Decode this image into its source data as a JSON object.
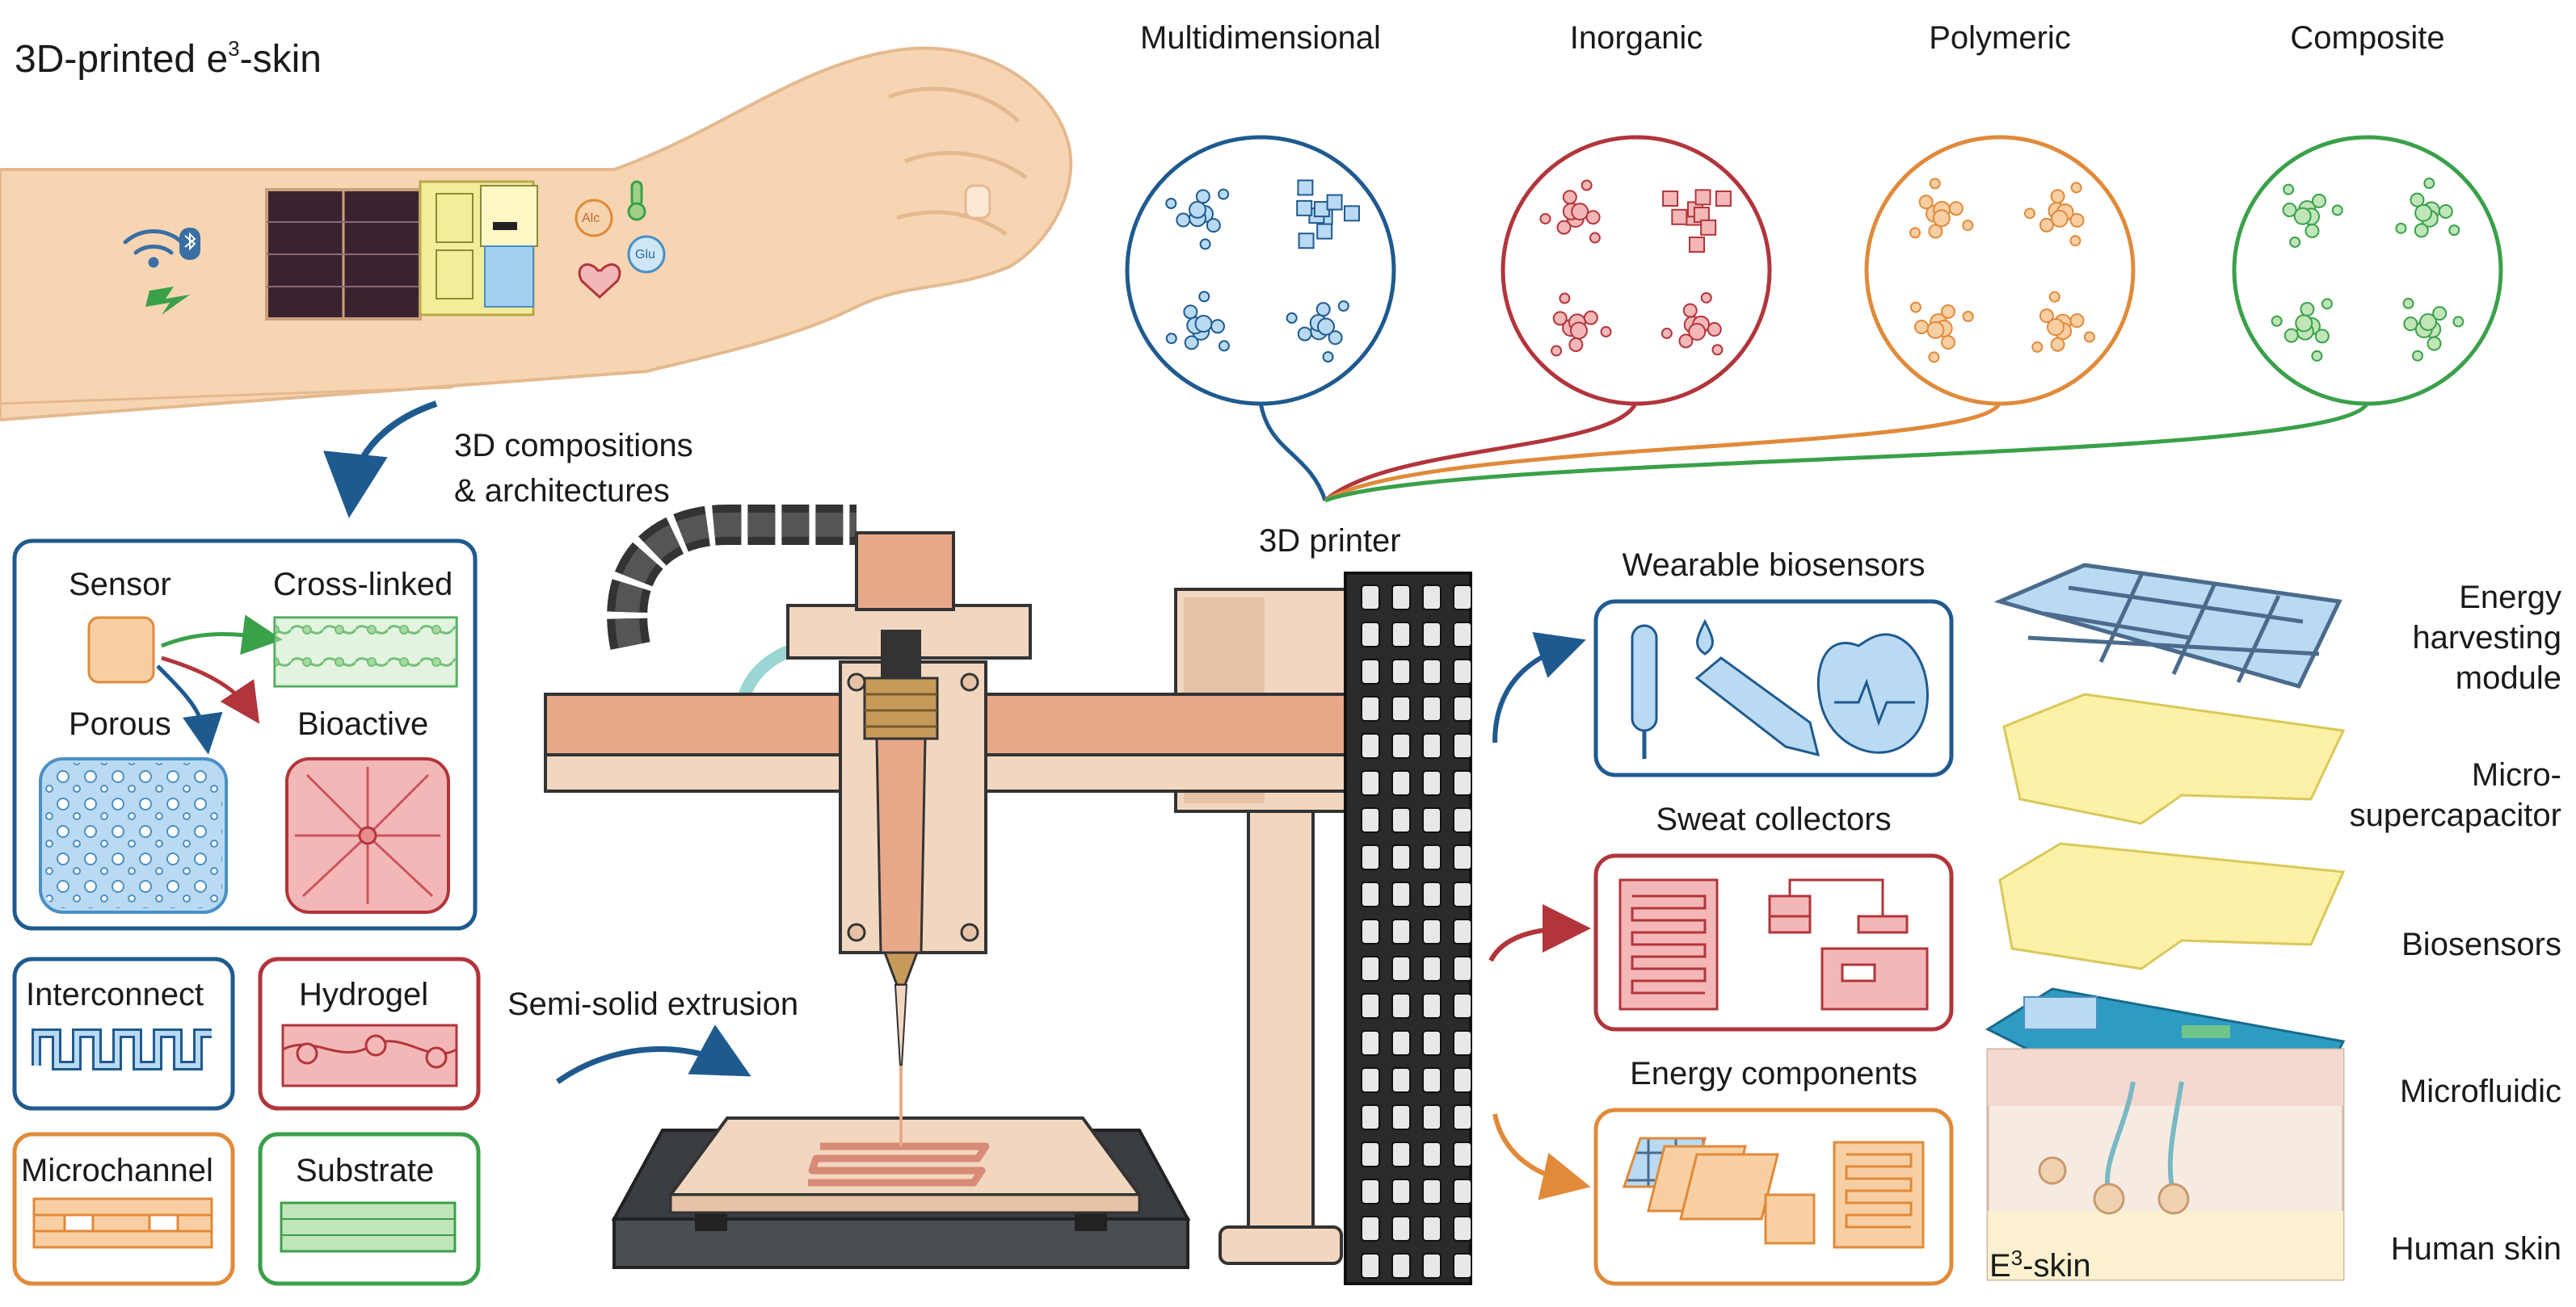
{
  "figure": {
    "main_title": "3D-printed e",
    "main_title_sup": "3",
    "main_title_tail": "-skin",
    "flow_label_1": "3D compositions",
    "flow_label_2": "& architectures",
    "printer_label": "3D printer",
    "extrusion_label": "Semi-solid extrusion",
    "e3skin_prefix": "E",
    "e3skin_sup": "3",
    "e3skin_tail": "-skin"
  },
  "materials": [
    {
      "label": "Multidimensional",
      "color": "#1f5a8f",
      "fill": "#b9daf2"
    },
    {
      "label": "Inorganic",
      "color": "#b2353b",
      "fill": "#f4b7b7"
    },
    {
      "label": "Polymeric",
      "color": "#e08a3a",
      "fill": "#f8cfa2"
    },
    {
      "label": "Composite",
      "color": "#3aa04a",
      "fill": "#bfe5b8"
    }
  ],
  "compositions": {
    "sensor": "Sensor",
    "cross_linked": "Cross-linked",
    "porous": "Porous",
    "bioactive": "Bioactive"
  },
  "architectures": [
    {
      "label": "Interconnect",
      "color": "#1f5a8f"
    },
    {
      "label": "Hydrogel",
      "color": "#b2353b"
    },
    {
      "label": "Microchannel",
      "color": "#e08a3a"
    },
    {
      "label": "Substrate",
      "color": "#3aa04a"
    }
  ],
  "applications": [
    {
      "label": "Wearable biosensors",
      "color": "#1f5a8f"
    },
    {
      "label": "Sweat collectors",
      "color": "#b2353b"
    },
    {
      "label": "Energy components",
      "color": "#e08a3a"
    }
  ],
  "layers": [
    {
      "lines": [
        "Energy",
        "harvesting",
        "module"
      ]
    },
    {
      "lines": [
        "Micro-",
        "supercapacitor"
      ]
    },
    {
      "lines": [
        "Biosensors"
      ]
    },
    {
      "lines": [
        "Microfluidic"
      ]
    },
    {
      "lines": [
        "Human skin"
      ]
    }
  ],
  "arm_icons": {
    "alc": "Alc",
    "glu": "Glu"
  }
}
